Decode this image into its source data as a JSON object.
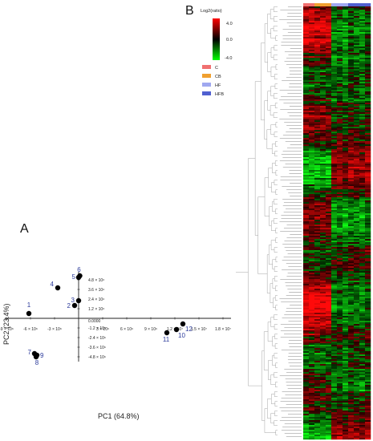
{
  "chart_data": [
    {
      "panel": "A",
      "type": "scatter",
      "xlabel": "PC1 (64.8%)",
      "ylabel": "PC2 (23.4%)",
      "xlim": [
        -9000000,
        19000000
      ],
      "ylim": [
        -5400000,
        5800000
      ],
      "origin_label": "0.0000",
      "x_ticks": [
        {
          "v": -9000000,
          "t": "-9 × 10⁶"
        },
        {
          "v": -6000000,
          "t": "-6 × 10⁶"
        },
        {
          "v": -3000000,
          "t": "-3 × 10⁶"
        },
        {
          "v": 3000000,
          "t": "3 × 10⁶"
        },
        {
          "v": 6000000,
          "t": "6 × 10⁶"
        },
        {
          "v": 9000000,
          "t": "9 × 10⁶"
        },
        {
          "v": 12000000,
          "t": "1.2 × 10⁷"
        },
        {
          "v": 15000000,
          "t": "1.5 × 10⁷"
        },
        {
          "v": 18000000,
          "t": "1.8 × 10⁷"
        }
      ],
      "y_ticks": [
        {
          "v": 4800000,
          "t": "4.8 × 10⁶"
        },
        {
          "v": 3600000,
          "t": "3.6 × 10⁶"
        },
        {
          "v": 2400000,
          "t": "2.4 × 10⁶"
        },
        {
          "v": 1200000,
          "t": "1.2 × 10⁶"
        },
        {
          "v": -1200000,
          "t": "-1.2 × 10⁶"
        },
        {
          "v": -2400000,
          "t": "-2.4 × 10⁶"
        },
        {
          "v": -3600000,
          "t": "-3.6 × 10⁶"
        },
        {
          "v": -4800000,
          "t": "-4.8 × 10⁶"
        }
      ],
      "points": [
        {
          "label": "1",
          "x": -6200000,
          "y": 600000
        },
        {
          "label": "2",
          "x": -500000,
          "y": 1600000
        },
        {
          "label": "3",
          "x": 0,
          "y": 2200000
        },
        {
          "label": "4",
          "x": -2600000,
          "y": 3800000
        },
        {
          "label": "5",
          "x": 0,
          "y": 5100000
        },
        {
          "label": "6",
          "x": 150000,
          "y": 5300000
        },
        {
          "label": "7",
          "x": -5500000,
          "y": -4400000
        },
        {
          "label": "8",
          "x": -5300000,
          "y": -4800000
        },
        {
          "label": "9",
          "x": -5200000,
          "y": -4600000
        },
        {
          "label": "10",
          "x": 12200000,
          "y": -1400000
        },
        {
          "label": "11",
          "x": 11000000,
          "y": -1800000
        },
        {
          "label": "12",
          "x": 13000000,
          "y": -700000
        }
      ],
      "point_color": "#000000",
      "label_color": "#2b3a9a"
    },
    {
      "panel": "B",
      "type": "heatmap",
      "colorbar": {
        "title": "Log2(ratio)",
        "max_label": "4.0",
        "mid_label": "0.0",
        "min_label": "-4.0",
        "colors": [
          "#ff0000",
          "#000000",
          "#00ff00"
        ]
      },
      "legend": [
        {
          "label": "C",
          "color": "#f07070"
        },
        {
          "label": "CB",
          "color": "#f0a030"
        },
        {
          "label": "HF",
          "color": "#a0a8f0"
        },
        {
          "label": "HFB",
          "color": "#5060d0"
        }
      ],
      "column_groups": [
        "C",
        "C",
        "CB",
        "CB",
        "CB",
        "HF",
        "HF",
        "HF",
        "HFB",
        "HFB",
        "HFB",
        "HFB"
      ]
    }
  ],
  "panels": {
    "a": "A",
    "b": "B"
  }
}
